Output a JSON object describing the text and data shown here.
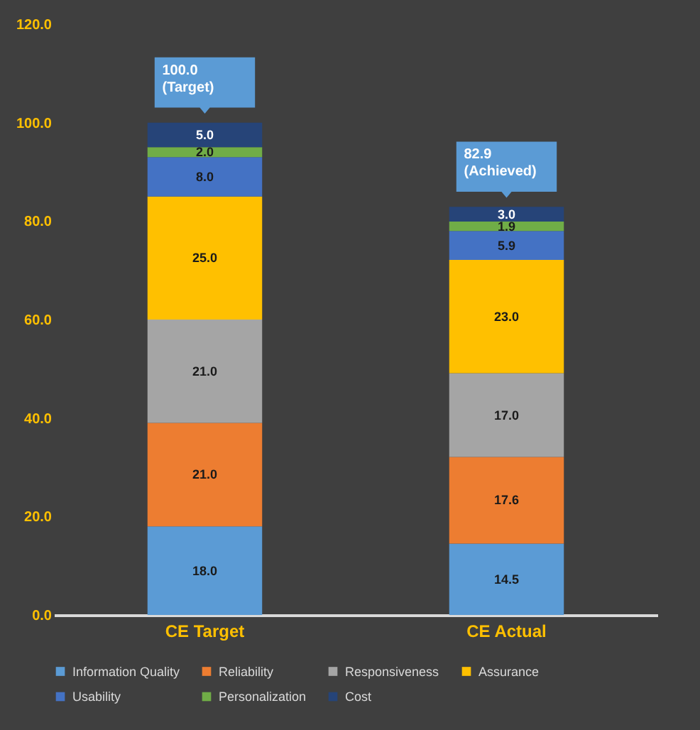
{
  "chart_data": {
    "type": "bar",
    "stacked": true,
    "categories": [
      "CE Target",
      "CE Actual"
    ],
    "series": [
      {
        "name": "Information Quality",
        "color": "#5b9bd5",
        "values": [
          18.0,
          14.5
        ],
        "value_labels": [
          "18.0",
          "14.5"
        ]
      },
      {
        "name": "Reliability",
        "color": "#ed7d31",
        "values": [
          21.0,
          17.6
        ],
        "value_labels": [
          "21.0",
          "17.6"
        ]
      },
      {
        "name": "Responsiveness",
        "color": "#a5a5a5",
        "values": [
          21.0,
          17.0
        ],
        "value_labels": [
          "21.0",
          "17.0"
        ]
      },
      {
        "name": "Assurance",
        "color": "#ffc000",
        "values": [
          25.0,
          23.0
        ],
        "value_labels": [
          "25.0",
          "23.0"
        ]
      },
      {
        "name": "Usability",
        "color": "#4472c4",
        "values": [
          8.0,
          5.9
        ],
        "value_labels": [
          "8.0",
          "5.9"
        ]
      },
      {
        "name": "Personalization",
        "color": "#70ad47",
        "values": [
          2.0,
          1.9
        ],
        "value_labels": [
          "2.0",
          "1.9"
        ]
      },
      {
        "name": "Cost",
        "color": "#264478",
        "values": [
          5.0,
          3.0
        ],
        "value_labels": [
          "5.0",
          "3.0"
        ]
      }
    ],
    "ylim": [
      0,
      120
    ],
    "yticks": [
      {
        "value": 0,
        "label": "0.0"
      },
      {
        "value": 20,
        "label": "20.0"
      },
      {
        "value": 40,
        "label": "40.0"
      },
      {
        "value": 60,
        "label": "60.0"
      },
      {
        "value": 80,
        "label": "80.0"
      },
      {
        "value": 100,
        "label": "100.0"
      },
      {
        "value": 120,
        "label": "120.0"
      }
    ],
    "grid": false,
    "legend": "bottom",
    "annotations": [
      {
        "text": "100.0\n(Target)",
        "x": "CE Target",
        "y": 100
      },
      {
        "text": "82.9\n(Achieved)",
        "x": "CE Actual",
        "y": 82.9
      }
    ]
  }
}
